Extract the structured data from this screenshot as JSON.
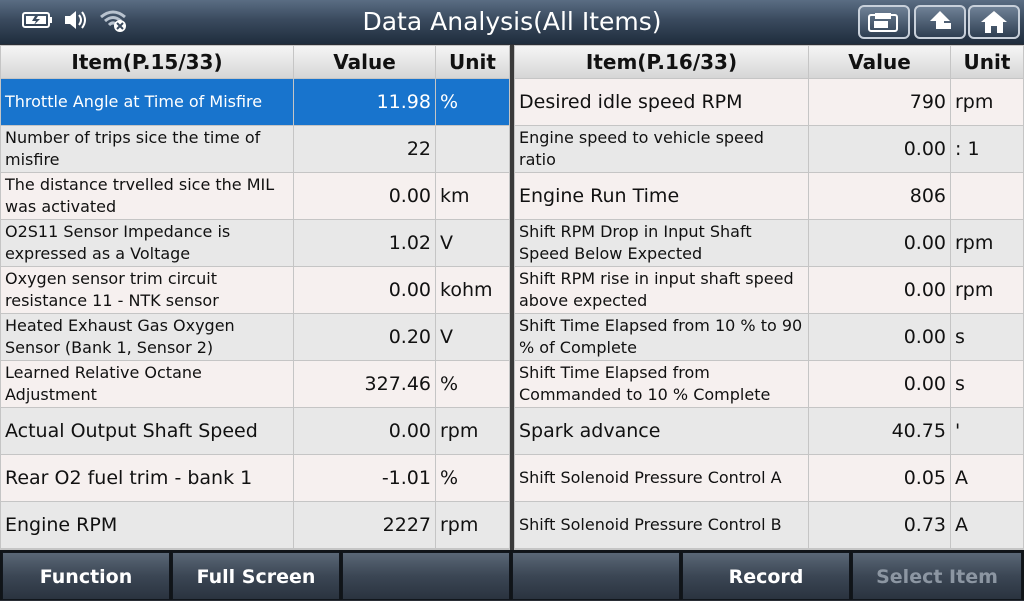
{
  "header": {
    "title": "Data Analysis(All Items)",
    "icons": [
      "battery-icon",
      "volume-icon",
      "wifi-off-icon",
      "print-icon",
      "back-icon",
      "home-icon"
    ]
  },
  "left_table": {
    "col_item": "Item(P.15/33)",
    "col_value": "Value",
    "col_unit": "Unit",
    "rows": [
      {
        "name": "Throttle Angle at Time of Misfire",
        "value": "11.98",
        "unit": "%"
      },
      {
        "name": "Number of trips sice the time of misfire",
        "value": "22",
        "unit": ""
      },
      {
        "name": "The distance trvelled sice the MIL was activated",
        "value": "0.00",
        "unit": "km"
      },
      {
        "name": "O2S11 Sensor Impedance is expressed as a Voltage",
        "value": "1.02",
        "unit": "V"
      },
      {
        "name": "Oxygen sensor trim circuit resistance 11 - NTK sensor",
        "value": "0.00",
        "unit": "kohm"
      },
      {
        "name": "Heated Exhaust Gas Oxygen Sensor (Bank 1, Sensor 2)",
        "value": "0.20",
        "unit": "V"
      },
      {
        "name": "Learned Relative Octane Adjustment",
        "value": "327.46",
        "unit": "%"
      },
      {
        "name": "Actual Output Shaft Speed",
        "value": "0.00",
        "unit": "rpm"
      },
      {
        "name": "Rear O2 fuel trim - bank 1",
        "value": "-1.01",
        "unit": "%"
      },
      {
        "name": "Engine RPM",
        "value": "2227",
        "unit": "rpm"
      }
    ]
  },
  "right_table": {
    "col_item": "Item(P.16/33)",
    "col_value": "Value",
    "col_unit": "Unit",
    "rows": [
      {
        "name": "Desired idle speed RPM",
        "value": "790",
        "unit": "rpm"
      },
      {
        "name": "Engine speed to vehicle speed ratio",
        "value": "0.00",
        "unit": ": 1"
      },
      {
        "name": "Engine Run Time",
        "value": "806",
        "unit": ""
      },
      {
        "name": "Shift RPM Drop in Input Shaft Speed Below Expected",
        "value": "0.00",
        "unit": "rpm"
      },
      {
        "name": "Shift RPM rise in input shaft speed above expected",
        "value": "0.00",
        "unit": "rpm"
      },
      {
        "name": "Shift Time Elapsed from 10 % to 90 % of Complete",
        "value": "0.00",
        "unit": "s"
      },
      {
        "name": "Shift Time Elapsed from Commanded to 10 % Complete",
        "value": "0.00",
        "unit": "s"
      },
      {
        "name": "Spark advance",
        "value": "40.75",
        "unit": "'"
      },
      {
        "name": "Shift Solenoid Pressure Control A",
        "value": "0.05",
        "unit": "A"
      },
      {
        "name": "Shift Solenoid Pressure Control B",
        "value": "0.73",
        "unit": "A"
      }
    ]
  },
  "footer": {
    "function": "Function",
    "full_screen": "Full Screen",
    "blank1": "",
    "blank2": "",
    "record": "Record",
    "select_item": "Select Item"
  },
  "colors": {
    "selected_row": "#1874cd",
    "header_bar": "#3a4a5e"
  }
}
